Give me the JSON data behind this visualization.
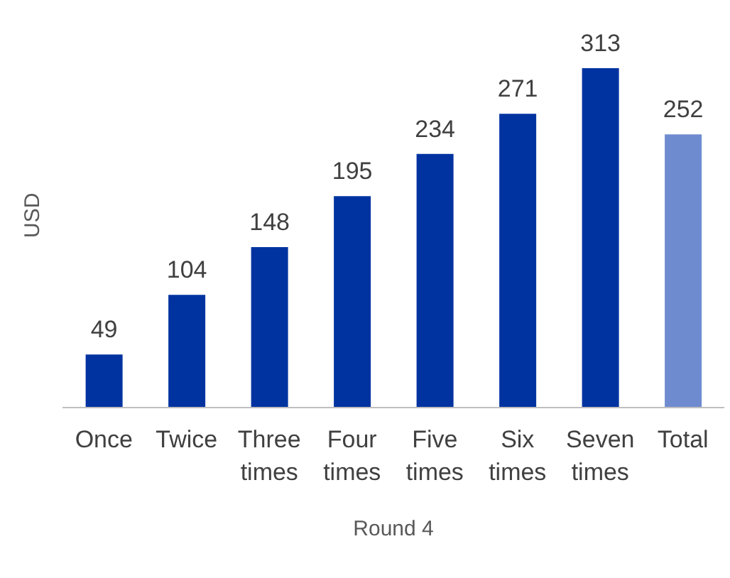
{
  "chart_data": {
    "type": "bar",
    "categories": [
      "Once",
      "Twice",
      "Three times",
      "Four times",
      "Five times",
      "Six times",
      "Seven times",
      "Total"
    ],
    "values": [
      49,
      104,
      148,
      195,
      234,
      271,
      313,
      252
    ],
    "colors": [
      "#0033a0",
      "#0033a0",
      "#0033a0",
      "#0033a0",
      "#0033a0",
      "#0033a0",
      "#0033a0",
      "#6f8bd0"
    ],
    "data_labels": true,
    "xlabel": "Round 4",
    "ylabel": "USD"
  }
}
